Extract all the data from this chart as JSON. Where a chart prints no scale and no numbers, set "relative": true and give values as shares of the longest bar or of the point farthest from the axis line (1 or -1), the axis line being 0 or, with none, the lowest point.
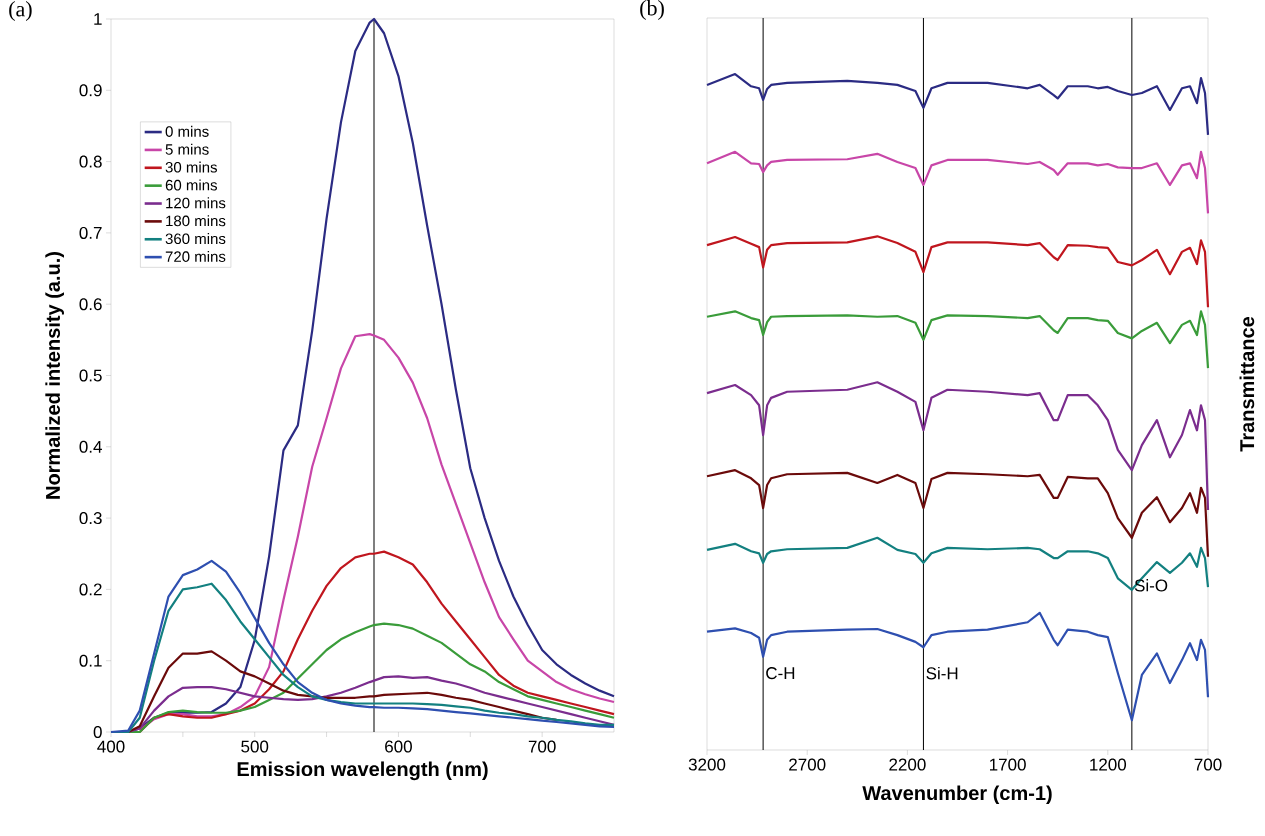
{
  "chart_data": [
    {
      "type": "line",
      "title": "(a)",
      "xlabel": "Emission wavelength (nm)",
      "ylabel": "Normalized intensity (a.u.)",
      "x": [
        400,
        412,
        420,
        430,
        440,
        450,
        460,
        470,
        480,
        490,
        500,
        510,
        520,
        530,
        540,
        550,
        560,
        570,
        580,
        583,
        590,
        600,
        610,
        620,
        630,
        640,
        650,
        660,
        670,
        680,
        690,
        700,
        710,
        720,
        730,
        740,
        750
      ],
      "series": [
        {
          "name": "0 mins",
          "color": "#2b2b83",
          "values": [
            0,
            0,
            0.005,
            0.02,
            0.027,
            0.027,
            0.027,
            0.028,
            0.04,
            0.063,
            0.129,
            0.246,
            0.395,
            0.43,
            0.563,
            0.72,
            0.855,
            0.955,
            0.995,
            1.0,
            0.98,
            0.92,
            0.826,
            0.71,
            0.6,
            0.48,
            0.37,
            0.3,
            0.24,
            0.19,
            0.15,
            0.115,
            0.095,
            0.08,
            0.068,
            0.058,
            0.05
          ]
        },
        {
          "name": "5 mins",
          "color": "#c846a8",
          "values": [
            null,
            null,
            0.003,
            0.018,
            0.025,
            0.025,
            0.022,
            0.022,
            0.025,
            0.035,
            0.05,
            0.091,
            0.185,
            0.274,
            0.372,
            0.44,
            0.51,
            0.555,
            0.558,
            0.556,
            0.55,
            0.525,
            0.49,
            0.44,
            0.375,
            0.32,
            0.265,
            0.21,
            0.161,
            0.13,
            0.1,
            0.085,
            0.07,
            0.06,
            0.053,
            0.047,
            0.042
          ]
        },
        {
          "name": "30 mins",
          "color": "#c0161e",
          "values": [
            null,
            null,
            0,
            0.02,
            0.025,
            0.022,
            0.02,
            0.02,
            0.025,
            0.03,
            0.04,
            0.06,
            0.085,
            0.13,
            0.17,
            0.205,
            0.23,
            0.245,
            0.25,
            0.25,
            0.253,
            0.245,
            0.235,
            0.21,
            0.18,
            0.155,
            0.13,
            0.105,
            0.08,
            0.065,
            0.055,
            0.05,
            0.045,
            0.04,
            0.035,
            0.03,
            0.025
          ]
        },
        {
          "name": "60 mins",
          "color": "#3a9c3a",
          "values": [
            0,
            0,
            0,
            0.02,
            0.028,
            0.03,
            0.028,
            0.027,
            0.027,
            0.03,
            0.035,
            0.045,
            0.055,
            0.075,
            0.095,
            0.115,
            0.13,
            0.14,
            0.148,
            0.15,
            0.152,
            0.15,
            0.145,
            0.135,
            0.125,
            0.11,
            0.095,
            0.085,
            0.07,
            0.06,
            0.05,
            0.045,
            0.04,
            0.035,
            0.03,
            0.025,
            0.02
          ]
        },
        {
          "name": "120 mins",
          "color": "#7b2d8e",
          "values": [
            0,
            0,
            0.005,
            0.03,
            0.05,
            0.062,
            0.063,
            0.063,
            0.06,
            0.055,
            0.05,
            0.048,
            0.046,
            0.045,
            0.046,
            0.05,
            0.055,
            0.062,
            0.07,
            0.072,
            0.077,
            0.078,
            0.076,
            0.077,
            0.072,
            0.068,
            0.062,
            0.055,
            0.05,
            0.045,
            0.04,
            0.035,
            0.03,
            0.025,
            0.02,
            0.015,
            0.01
          ]
        },
        {
          "name": "180 mins",
          "color": "#6b0a0a",
          "values": [
            0,
            0,
            0.008,
            0.05,
            0.09,
            0.11,
            0.11,
            0.113,
            0.1,
            0.085,
            0.078,
            0.068,
            0.058,
            0.052,
            0.05,
            0.048,
            0.048,
            0.048,
            0.05,
            0.05,
            0.052,
            0.053,
            0.054,
            0.055,
            0.052,
            0.048,
            0.045,
            0.04,
            0.035,
            0.03,
            0.025,
            0.02,
            0.017,
            null,
            null,
            null,
            null
          ]
        },
        {
          "name": "360 mins",
          "color": "#138080",
          "values": [
            0,
            0,
            0.02,
            0.1,
            0.17,
            0.2,
            0.203,
            0.208,
            0.185,
            0.155,
            0.13,
            0.105,
            0.08,
            0.063,
            0.05,
            0.045,
            0.042,
            0.04,
            0.04,
            0.04,
            0.04,
            0.04,
            0.04,
            0.039,
            0.038,
            0.036,
            0.034,
            0.03,
            0.027,
            0.025,
            0.022,
            0.02,
            0.017,
            0.015,
            0.012,
            0.01,
            0.01
          ]
        },
        {
          "name": "720 mins",
          "color": "#2e4fb0",
          "values": [
            0,
            0.002,
            0.03,
            0.11,
            0.19,
            0.22,
            0.228,
            0.24,
            0.225,
            0.195,
            0.16,
            0.125,
            0.095,
            0.07,
            0.055,
            0.045,
            0.04,
            0.037,
            0.035,
            0.035,
            0.034,
            0.034,
            0.033,
            0.032,
            0.03,
            0.028,
            0.026,
            0.024,
            0.022,
            0.02,
            0.018,
            0.016,
            0.014,
            0.012,
            0.01,
            0.008,
            0.007
          ]
        }
      ],
      "xlim": [
        400,
        750
      ],
      "ylim": [
        0,
        1
      ],
      "xticks": [
        400,
        {
          "value": 450,
          "label": null
        },
        500,
        {
          "value": 550,
          "label": null
        },
        600,
        {
          "value": 650,
          "label": null
        },
        700
      ],
      "yticks": [
        0,
        0.1,
        0.2,
        0.3,
        0.4,
        0.5,
        0.6,
        0.7,
        0.8,
        0.9,
        1
      ],
      "ref_lines": [
        {
          "axis": "x",
          "value": 583,
          "color": "#000000"
        }
      ],
      "grid": false,
      "legend": "top left",
      "marker": "none",
      "line_style": "solid"
    },
    {
      "type": "line",
      "title": "(b)",
      "xlabel": "Wavenumber (cm-1)",
      "ylabel": "Transmittance",
      "relative": true,
      "tick_labels": "x",
      "x": [
        3200,
        3060,
        2980,
        2940,
        2920,
        2900,
        2880,
        2800,
        2500,
        2350,
        2250,
        2160,
        2120,
        2080,
        2000,
        1800,
        1600,
        1540,
        1470,
        1450,
        1400,
        1300,
        1250,
        1200,
        1150,
        1080,
        1030,
        955,
        890,
        830,
        790,
        755,
        735,
        715,
        700
      ],
      "series": [
        {
          "color": "#2b2b83",
          "values": [
            0.984,
            1.0,
            0.982,
            0.979,
            0.962,
            0.978,
            0.984,
            0.987,
            0.99,
            0.987,
            0.984,
            0.975,
            0.95,
            0.979,
            0.987,
            0.987,
            0.979,
            0.984,
            0.969,
            0.964,
            0.982,
            0.982,
            0.979,
            0.981,
            0.975,
            0.969,
            0.972,
            0.982,
            0.947,
            0.979,
            0.982,
            0.957,
            0.994,
            0.972,
            0.91
          ]
        },
        {
          "color": "#c846a8",
          "values": [
            0.868,
            0.885,
            0.868,
            0.867,
            0.855,
            0.865,
            0.87,
            0.873,
            0.874,
            0.882,
            0.87,
            0.861,
            0.836,
            0.865,
            0.873,
            0.873,
            0.867,
            0.87,
            0.858,
            0.851,
            0.868,
            0.868,
            0.865,
            0.867,
            0.862,
            0.861,
            0.861,
            0.868,
            0.836,
            0.865,
            0.868,
            0.846,
            0.885,
            0.861,
            0.794
          ]
        },
        {
          "color": "#c0161e",
          "values": [
            0.747,
            0.759,
            0.749,
            0.744,
            0.714,
            0.74,
            0.747,
            0.75,
            0.751,
            0.76,
            0.75,
            0.737,
            0.707,
            0.744,
            0.751,
            0.751,
            0.747,
            0.75,
            0.729,
            0.725,
            0.747,
            0.746,
            0.744,
            0.743,
            0.722,
            0.717,
            0.725,
            0.74,
            0.704,
            0.737,
            0.743,
            0.719,
            0.754,
            0.737,
            0.655
          ]
        },
        {
          "color": "#3a9c3a",
          "values": [
            0.641,
            0.649,
            0.639,
            0.636,
            0.614,
            0.633,
            0.641,
            0.642,
            0.643,
            0.641,
            0.642,
            0.632,
            0.607,
            0.636,
            0.643,
            0.642,
            0.639,
            0.642,
            0.621,
            0.617,
            0.639,
            0.639,
            0.636,
            0.635,
            0.617,
            0.609,
            0.62,
            0.632,
            0.602,
            0.629,
            0.635,
            0.614,
            0.649,
            0.629,
            0.565
          ]
        },
        {
          "color": "#7b2d8e",
          "values": [
            0.528,
            0.54,
            0.525,
            0.51,
            0.466,
            0.51,
            0.521,
            0.53,
            0.533,
            0.544,
            0.53,
            0.515,
            0.473,
            0.521,
            0.533,
            0.53,
            0.525,
            0.528,
            0.488,
            0.488,
            0.525,
            0.525,
            0.51,
            0.488,
            0.444,
            0.414,
            0.451,
            0.488,
            0.433,
            0.466,
            0.503,
            0.473,
            0.51,
            0.488,
            0.355
          ]
        },
        {
          "color": "#6b0a0a",
          "values": [
            0.405,
            0.414,
            0.402,
            0.392,
            0.358,
            0.392,
            0.402,
            0.408,
            0.41,
            0.395,
            0.407,
            0.395,
            0.358,
            0.401,
            0.41,
            0.408,
            0.405,
            0.407,
            0.373,
            0.373,
            0.404,
            0.402,
            0.402,
            0.38,
            0.343,
            0.314,
            0.351,
            0.374,
            0.337,
            0.358,
            0.38,
            0.351,
            0.388,
            0.373,
            0.286
          ]
        },
        {
          "color": "#138080",
          "values": [
            0.296,
            0.305,
            0.294,
            0.291,
            0.277,
            0.29,
            0.294,
            0.297,
            0.299,
            0.314,
            0.296,
            0.29,
            0.277,
            0.291,
            0.299,
            0.297,
            0.299,
            0.297,
            0.284,
            0.284,
            0.294,
            0.294,
            0.291,
            0.284,
            0.254,
            0.237,
            0.254,
            0.278,
            0.262,
            0.277,
            0.291,
            0.271,
            0.299,
            0.284,
            0.241
          ]
        },
        {
          "color": "#2e4fb0",
          "values": [
            0.175,
            0.18,
            0.173,
            0.166,
            0.138,
            0.163,
            0.17,
            0.175,
            0.178,
            0.179,
            0.17,
            0.16,
            0.152,
            0.17,
            0.175,
            0.178,
            0.189,
            0.203,
            0.163,
            0.155,
            0.178,
            0.175,
            0.17,
            0.167,
            0.114,
            0.044,
            0.111,
            0.143,
            0.099,
            0.133,
            0.158,
            0.133,
            0.163,
            0.148,
            0.078
          ]
        }
      ],
      "xlim": [
        3200,
        700
      ],
      "xticks": [
        3200,
        2700,
        2200,
        1700,
        1200,
        700
      ],
      "ref_lines": [
        {
          "axis": "x",
          "value": 2920,
          "label": "C-H",
          "color": "#000000"
        },
        {
          "axis": "x",
          "value": 2120,
          "label": "Si-H",
          "color": "#000000"
        },
        {
          "axis": "x",
          "value": 1080,
          "label": "Si-O",
          "color": "#000000"
        }
      ],
      "grid": false,
      "legend": false,
      "marker": "none",
      "line_style": "solid"
    }
  ]
}
